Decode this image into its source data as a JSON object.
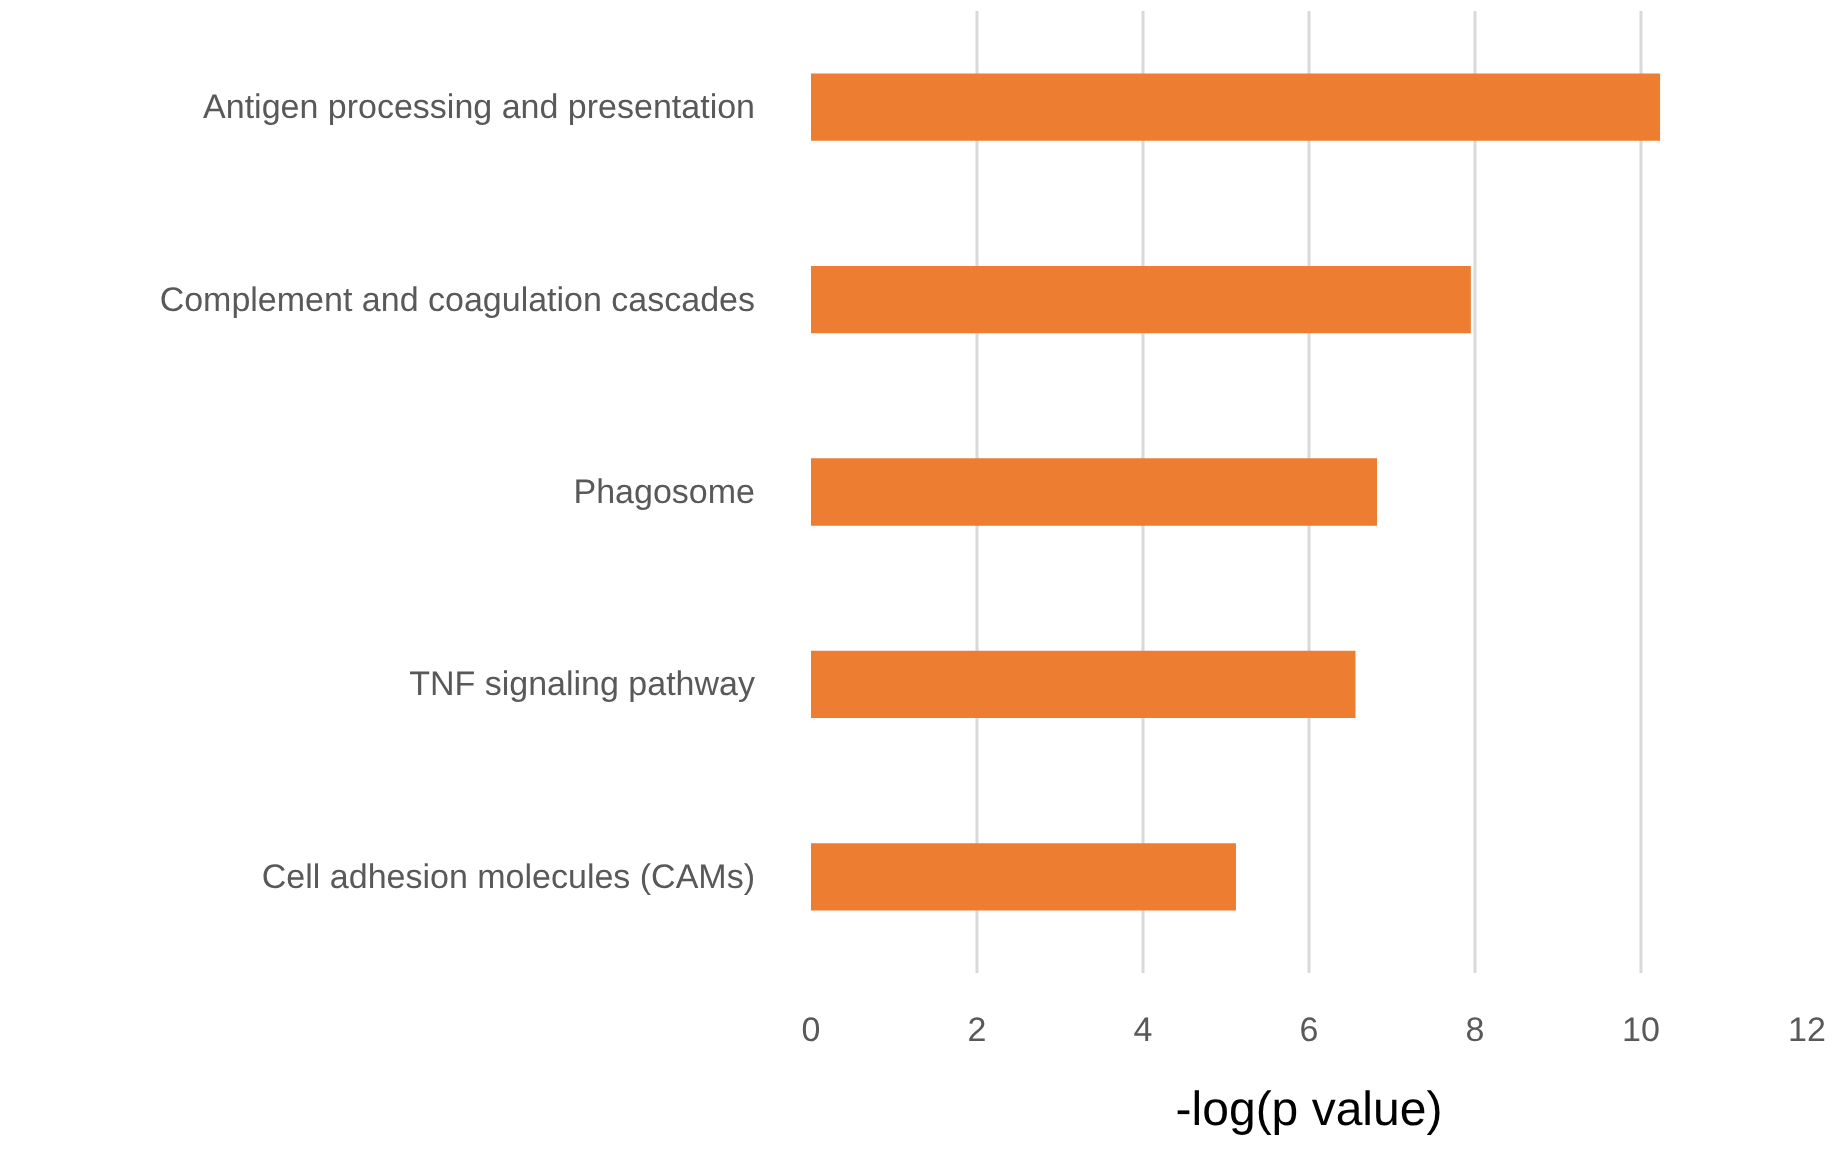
{
  "chart_data": {
    "type": "bar",
    "orientation": "horizontal",
    "xlabel": "-log(p value)",
    "categories": [
      "Antigen processing and presentation",
      "Complement and coagulation cascades",
      "Phagosome",
      "TNF signaling pathway",
      "Cell adhesion molecules (CAMs)"
    ],
    "values": [
      10.23,
      7.95,
      6.82,
      6.56,
      5.12
    ],
    "color": "#ed7d31",
    "xlim": [
      0,
      12
    ],
    "xticks": [
      0,
      2,
      4,
      6,
      8,
      10,
      12
    ],
    "grid": "x"
  }
}
